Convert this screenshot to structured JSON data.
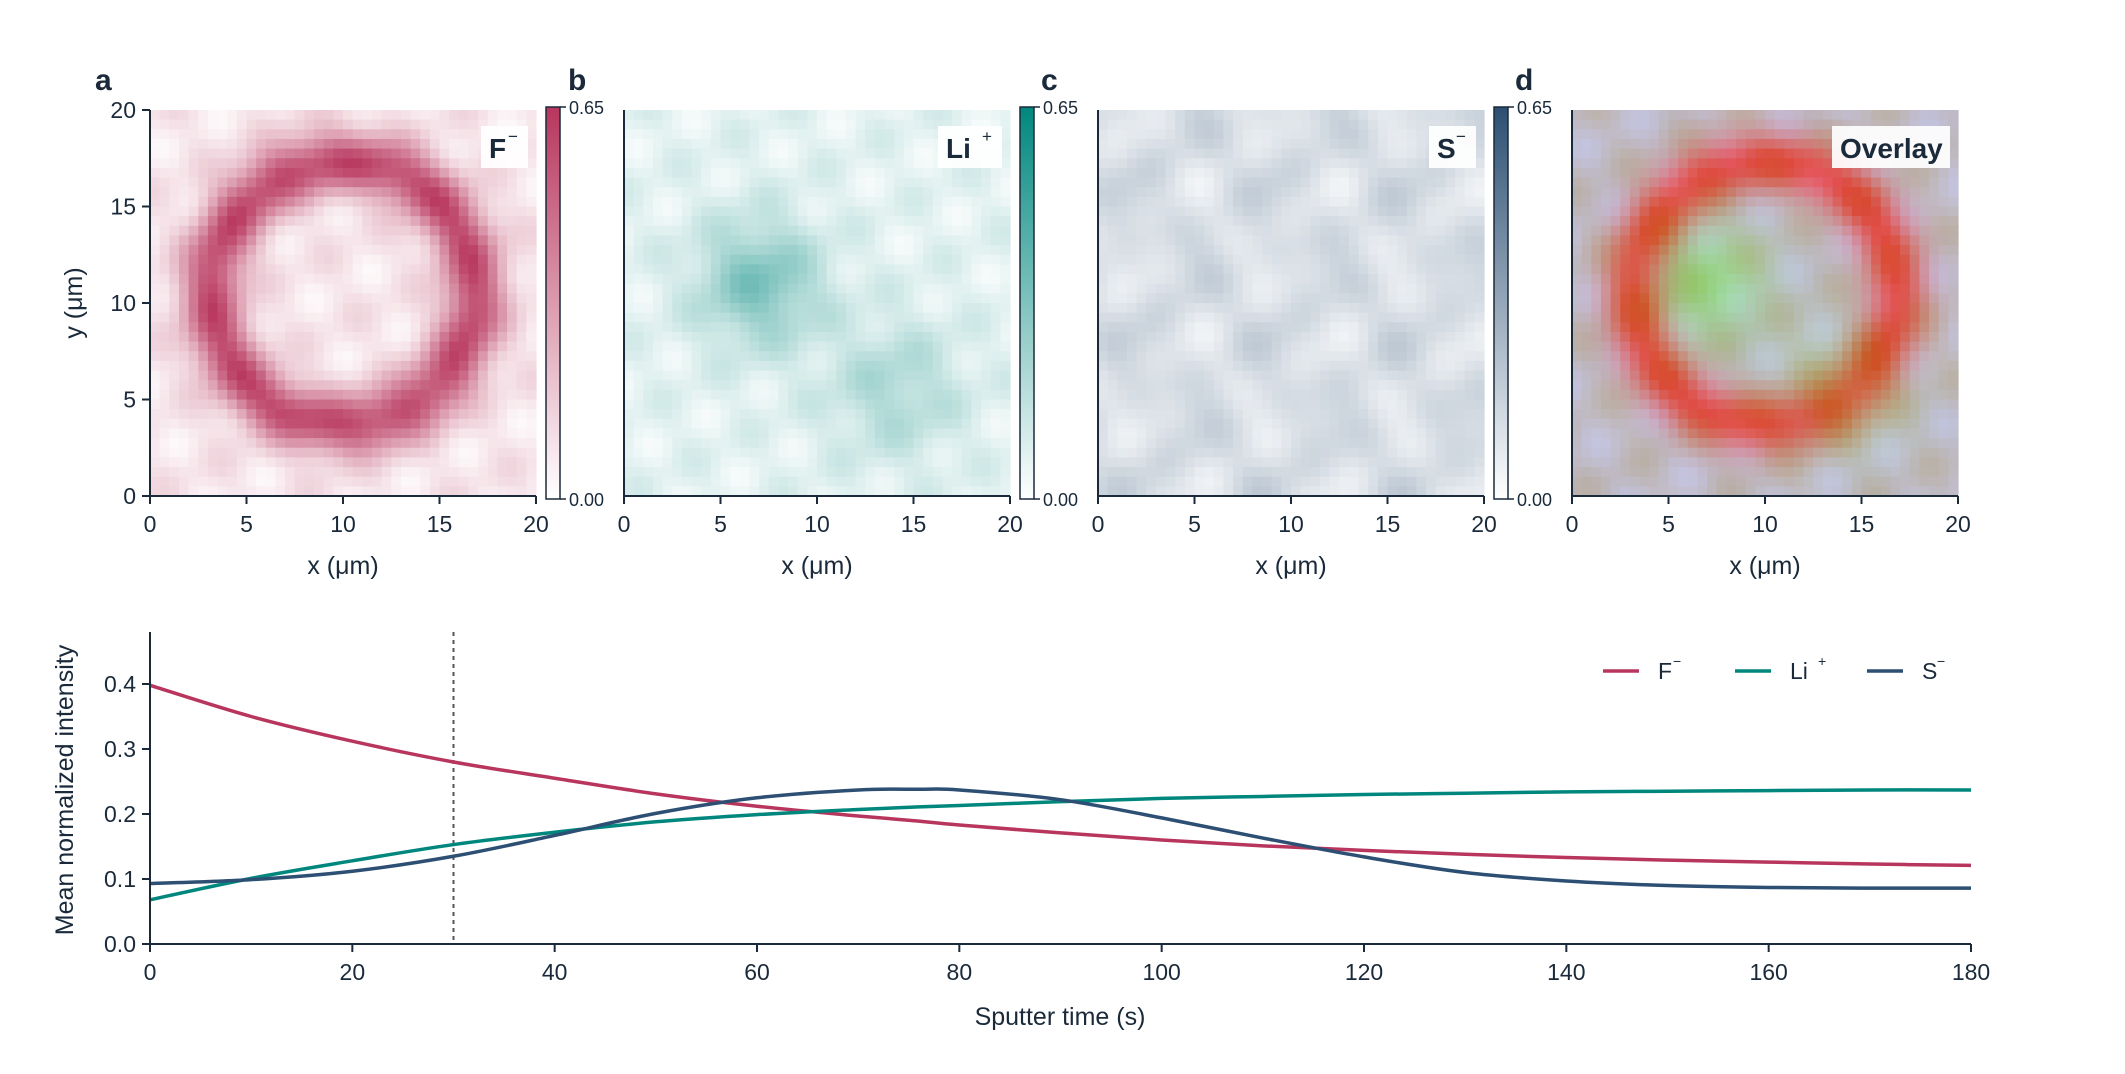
{
  "panel_letters": [
    "a",
    "b",
    "c",
    "d"
  ],
  "maps": [
    {
      "letter": "a",
      "label": "F",
      "charge": "−",
      "color": "#b8365e",
      "xlabel": "x (μm)",
      "ylabel": "y (μm)",
      "xlim": [
        0,
        20
      ],
      "ylim": [
        0,
        20
      ],
      "ticks": [
        "0",
        "5",
        "10",
        "15",
        "20"
      ],
      "colorbar": {
        "min": "0.00",
        "max": "0.65"
      }
    },
    {
      "letter": "b",
      "label": "Li",
      "charge": "+",
      "color": "#00877d",
      "xlabel": "x (μm)",
      "ylabel": "",
      "xlim": [
        0,
        20
      ],
      "ylim": [
        0,
        20
      ],
      "ticks": [
        "0",
        "5",
        "10",
        "15",
        "20"
      ],
      "colorbar": {
        "min": "0.00",
        "max": "0.65"
      }
    },
    {
      "letter": "c",
      "label": "S",
      "charge": "−",
      "color": "#2c4f73",
      "xlabel": "x (μm)",
      "ylabel": "",
      "xlim": [
        0,
        20
      ],
      "ylim": [
        0,
        20
      ],
      "ticks": [
        "0",
        "5",
        "10",
        "15",
        "20"
      ],
      "colorbar": {
        "min": "0.00",
        "max": "0.65"
      }
    },
    {
      "letter": "d",
      "label": "Overlay",
      "charge": "",
      "color": "#000000",
      "xlabel": "x (μm)",
      "ylabel": "",
      "xlim": [
        0,
        20
      ],
      "ylim": [
        0,
        20
      ],
      "ticks": [
        "0",
        "5",
        "10",
        "15",
        "20"
      ],
      "colorbar": null
    }
  ],
  "chart_data": {
    "type": "line",
    "title": "",
    "xlabel": "Sputter time (s)",
    "ylabel": "Mean normalized intensity",
    "xlim": [
      0,
      180
    ],
    "ylim": [
      0,
      0.48
    ],
    "xticks": [
      "0",
      "20",
      "40",
      "60",
      "80",
      "100",
      "120",
      "140",
      "160",
      "180"
    ],
    "yticks": [
      "0.0",
      "0.1",
      "0.2",
      "0.3",
      "0.4"
    ],
    "vline_x": 30,
    "legend_position": "top-right",
    "x": [
      0,
      10,
      20,
      30,
      40,
      50,
      60,
      70,
      76,
      80,
      90,
      100,
      110,
      120,
      130,
      140,
      150,
      160,
      170,
      180
    ],
    "series": [
      {
        "name": "F",
        "charge": "−",
        "color": "#b8365e",
        "values": [
          0.398,
          0.35,
          0.312,
          0.28,
          0.255,
          0.231,
          0.212,
          0.197,
          0.189,
          0.183,
          0.171,
          0.16,
          0.151,
          0.144,
          0.138,
          0.133,
          0.129,
          0.126,
          0.123,
          0.121
        ]
      },
      {
        "name": "Li",
        "charge": "+",
        "color": "#00877d",
        "values": [
          0.068,
          0.101,
          0.128,
          0.153,
          0.172,
          0.188,
          0.199,
          0.207,
          0.211,
          0.213,
          0.219,
          0.224,
          0.227,
          0.23,
          0.232,
          0.234,
          0.235,
          0.236,
          0.237,
          0.237
        ]
      },
      {
        "name": "S",
        "charge": "−",
        "color": "#2c4f73",
        "values": [
          0.093,
          0.099,
          0.112,
          0.135,
          0.167,
          0.201,
          0.225,
          0.237,
          0.238,
          0.237,
          0.222,
          0.194,
          0.163,
          0.134,
          0.11,
          0.097,
          0.09,
          0.087,
          0.086,
          0.086
        ]
      }
    ]
  }
}
